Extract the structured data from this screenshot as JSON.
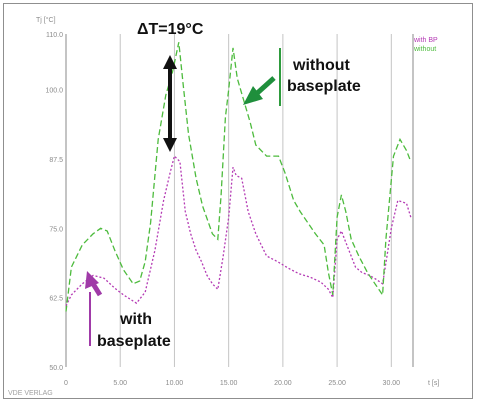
{
  "chart_data": {
    "type": "line",
    "ylabel": "Tj [°C]",
    "xlabel": "t [s]",
    "x_ticks": [
      "0",
      "5.00",
      "10.00",
      "15.00",
      "20.00",
      "25.00",
      "30.00"
    ],
    "y_ticks": [
      "50.0",
      "62.5",
      "75.0",
      "87.5",
      "100.0",
      "110.0"
    ],
    "xlim": [
      0,
      32
    ],
    "ylim": [
      50,
      110
    ],
    "grid": "vertical",
    "legend_position": "top-right",
    "series": [
      {
        "name": "with BP",
        "color": "#b43ab4",
        "points": [
          [
            0,
            61
          ],
          [
            0.5,
            63
          ],
          [
            1.5,
            65
          ],
          [
            2.5,
            66.5
          ],
          [
            3.5,
            66
          ],
          [
            4.5,
            64.2
          ],
          [
            5.3,
            63
          ],
          [
            6.5,
            61.5
          ],
          [
            7.3,
            63.5
          ],
          [
            8.2,
            71
          ],
          [
            9,
            80
          ],
          [
            9.6,
            85
          ],
          [
            10,
            88
          ],
          [
            10.5,
            87
          ],
          [
            11,
            78
          ],
          [
            11.5,
            74
          ],
          [
            12,
            71
          ],
          [
            12.5,
            69
          ],
          [
            13,
            66.5
          ],
          [
            13.5,
            65
          ],
          [
            14,
            64
          ],
          [
            14.5,
            70
          ],
          [
            15,
            77
          ],
          [
            15.4,
            86
          ],
          [
            15.7,
            84.5
          ],
          [
            16.2,
            84
          ],
          [
            16.8,
            78
          ],
          [
            17.5,
            74
          ],
          [
            18.5,
            70
          ],
          [
            19.5,
            69
          ],
          [
            20.5,
            67.8
          ],
          [
            21.5,
            66.8
          ],
          [
            22.5,
            66.2
          ],
          [
            23.5,
            65.3
          ],
          [
            24.2,
            64
          ],
          [
            24.6,
            62.5
          ],
          [
            25,
            73
          ],
          [
            25.4,
            74.5
          ],
          [
            26,
            71.5
          ],
          [
            26.7,
            68
          ],
          [
            27.3,
            67
          ],
          [
            28,
            66.5
          ],
          [
            28.6,
            65.8
          ],
          [
            29.2,
            65
          ],
          [
            29.6,
            70
          ],
          [
            30,
            75
          ],
          [
            30.6,
            80
          ],
          [
            31.4,
            79.5
          ],
          [
            31.8,
            77
          ]
        ]
      },
      {
        "name": "without",
        "color": "#4dbb3d",
        "points": [
          [
            0,
            60
          ],
          [
            0.5,
            68
          ],
          [
            1.5,
            72
          ],
          [
            2.5,
            74
          ],
          [
            3.2,
            75
          ],
          [
            3.8,
            74.5
          ],
          [
            4.5,
            71
          ],
          [
            5.3,
            67.5
          ],
          [
            6.2,
            65
          ],
          [
            6.8,
            65.5
          ],
          [
            7.3,
            69
          ],
          [
            7.8,
            76
          ],
          [
            8.5,
            91
          ],
          [
            9.2,
            99
          ],
          [
            9.8,
            103
          ],
          [
            10.4,
            108.5
          ],
          [
            10.8,
            101
          ],
          [
            11.3,
            92
          ],
          [
            12,
            84
          ],
          [
            12.6,
            79
          ],
          [
            13.5,
            74
          ],
          [
            14,
            73
          ],
          [
            14.3,
            81
          ],
          [
            14.7,
            95
          ],
          [
            15,
            100
          ],
          [
            15.4,
            107.5
          ],
          [
            15.8,
            102
          ],
          [
            16.4,
            98
          ],
          [
            17,
            94
          ],
          [
            17.5,
            90
          ],
          [
            18.5,
            88
          ],
          [
            19.6,
            88
          ],
          [
            20.2,
            85
          ],
          [
            21,
            80
          ],
          [
            21.6,
            78
          ],
          [
            22.3,
            76
          ],
          [
            23,
            74
          ],
          [
            23.8,
            72
          ],
          [
            24.2,
            67
          ],
          [
            24.6,
            63
          ],
          [
            25,
            77
          ],
          [
            25.4,
            81
          ],
          [
            25.8,
            78
          ],
          [
            26.3,
            73
          ],
          [
            27,
            70
          ],
          [
            27.8,
            67
          ],
          [
            28.5,
            65
          ],
          [
            29.2,
            63
          ],
          [
            29.5,
            73
          ],
          [
            30.2,
            88
          ],
          [
            30.8,
            91
          ],
          [
            31.4,
            89
          ],
          [
            31.8,
            87
          ]
        ]
      }
    ],
    "annotations": {
      "delta": "ΔT=19°C",
      "without_label": [
        "without",
        "baseplate"
      ],
      "with_label": [
        "with",
        "baseplate"
      ]
    }
  },
  "watermark": "VDE VERLAG"
}
